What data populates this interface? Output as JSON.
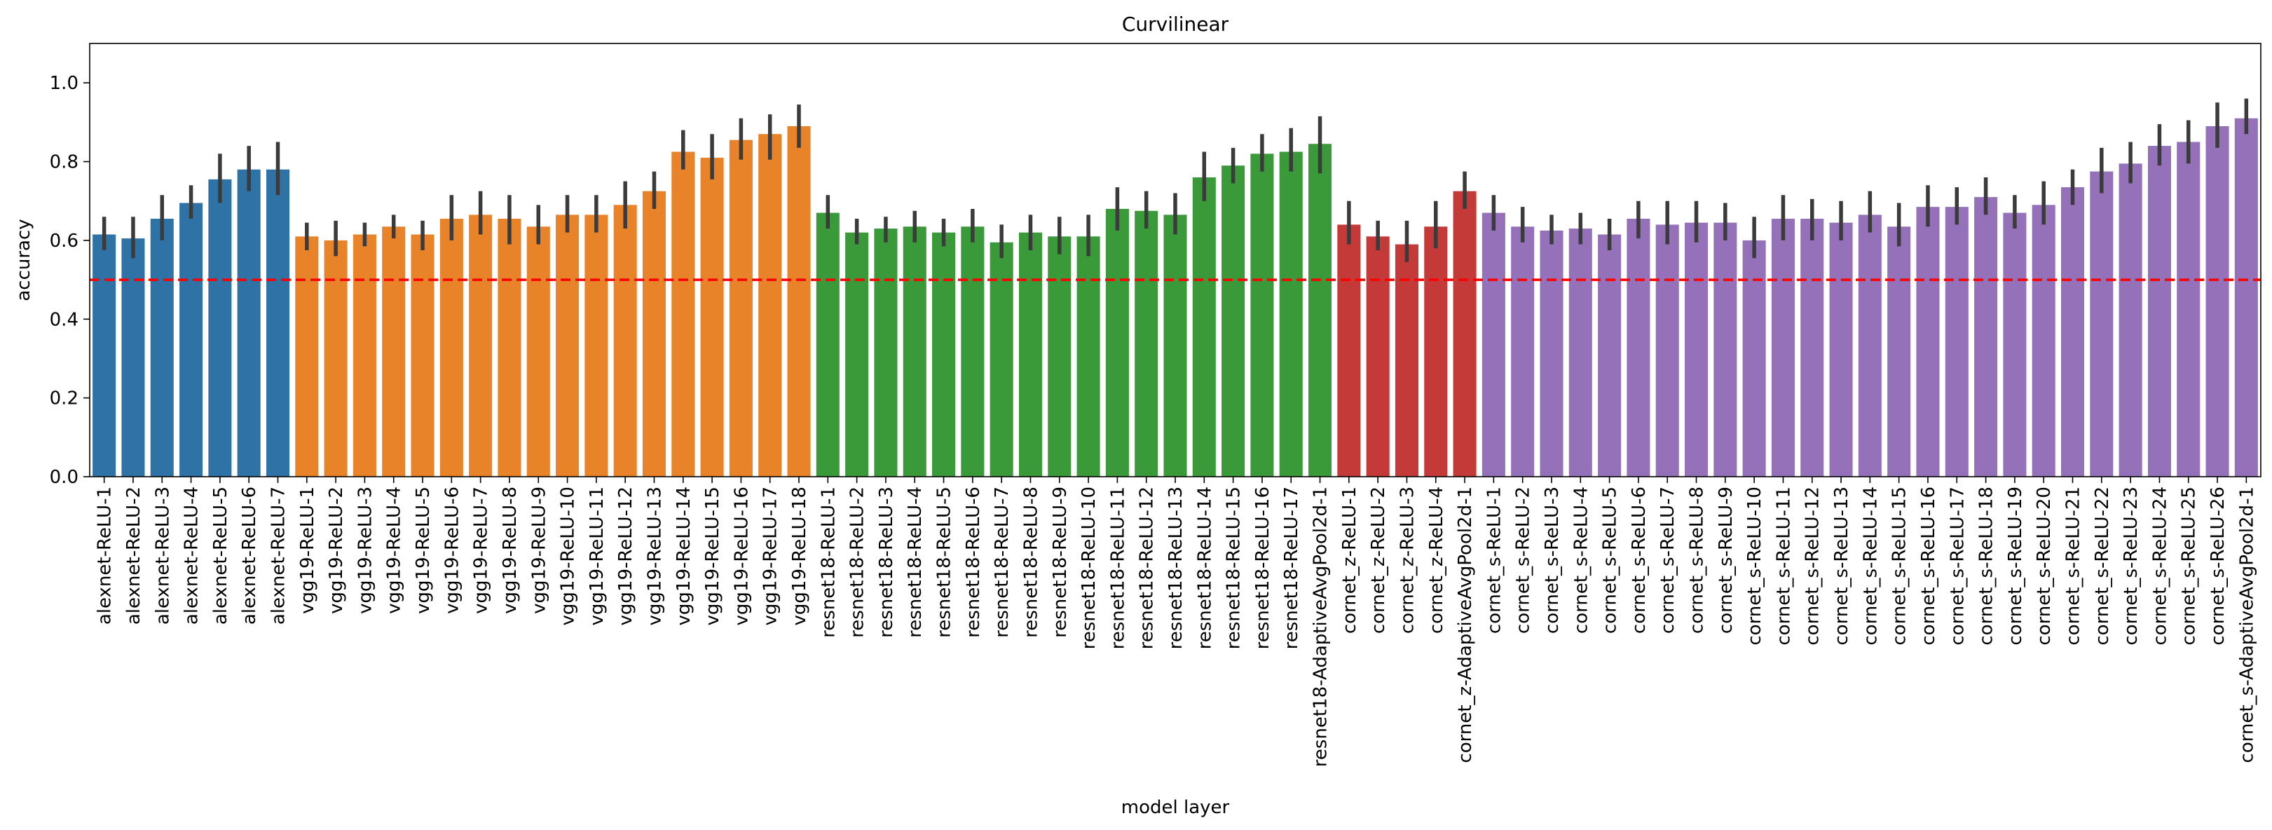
{
  "chart_data": {
    "type": "bar",
    "title": "Curvilinear",
    "xlabel": "model layer",
    "ylabel": "accuracy",
    "ylim": [
      0,
      1.1
    ],
    "yticks": [
      "0.0",
      "0.2",
      "0.4",
      "0.6",
      "0.8",
      "1.0"
    ],
    "grid": false,
    "legend": "none",
    "reference_line": {
      "y": 0.5,
      "color": "#ff0000",
      "style": "dashed"
    },
    "errorbar_color": "#3b3b3b",
    "groups": [
      {
        "model": "alexnet",
        "color": "#2f73a6"
      },
      {
        "model": "vgg19",
        "color": "#e8832a"
      },
      {
        "model": "resnet18",
        "color": "#3a9a3a"
      },
      {
        "model": "cornet_z",
        "color": "#c33a39"
      },
      {
        "model": "cornet_s",
        "color": "#9471b8"
      }
    ],
    "categories": [
      "alexnet-ReLU-1",
      "alexnet-ReLU-2",
      "alexnet-ReLU-3",
      "alexnet-ReLU-4",
      "alexnet-ReLU-5",
      "alexnet-ReLU-6",
      "alexnet-ReLU-7",
      "vgg19-ReLU-1",
      "vgg19-ReLU-2",
      "vgg19-ReLU-3",
      "vgg19-ReLU-4",
      "vgg19-ReLU-5",
      "vgg19-ReLU-6",
      "vgg19-ReLU-7",
      "vgg19-ReLU-8",
      "vgg19-ReLU-9",
      "vgg19-ReLU-10",
      "vgg19-ReLU-11",
      "vgg19-ReLU-12",
      "vgg19-ReLU-13",
      "vgg19-ReLU-14",
      "vgg19-ReLU-15",
      "vgg19-ReLU-16",
      "vgg19-ReLU-17",
      "vgg19-ReLU-18",
      "resnet18-ReLU-1",
      "resnet18-ReLU-2",
      "resnet18-ReLU-3",
      "resnet18-ReLU-4",
      "resnet18-ReLU-5",
      "resnet18-ReLU-6",
      "resnet18-ReLU-7",
      "resnet18-ReLU-8",
      "resnet18-ReLU-9",
      "resnet18-ReLU-10",
      "resnet18-ReLU-11",
      "resnet18-ReLU-12",
      "resnet18-ReLU-13",
      "resnet18-ReLU-14",
      "resnet18-ReLU-15",
      "resnet18-ReLU-16",
      "resnet18-ReLU-17",
      "resnet18-AdaptiveAvgPool2d-1",
      "cornet_z-ReLU-1",
      "cornet_z-ReLU-2",
      "cornet_z-ReLU-3",
      "cornet_z-ReLU-4",
      "cornet_z-AdaptiveAvgPool2d-1",
      "cornet_s-ReLU-1",
      "cornet_s-ReLU-2",
      "cornet_s-ReLU-3",
      "cornet_s-ReLU-4",
      "cornet_s-ReLU-5",
      "cornet_s-ReLU-6",
      "cornet_s-ReLU-7",
      "cornet_s-ReLU-8",
      "cornet_s-ReLU-9",
      "cornet_s-ReLU-10",
      "cornet_s-ReLU-11",
      "cornet_s-ReLU-12",
      "cornet_s-ReLU-13",
      "cornet_s-ReLU-14",
      "cornet_s-ReLU-15",
      "cornet_s-ReLU-16",
      "cornet_s-ReLU-17",
      "cornet_s-ReLU-18",
      "cornet_s-ReLU-19",
      "cornet_s-ReLU-20",
      "cornet_s-ReLU-21",
      "cornet_s-ReLU-22",
      "cornet_s-ReLU-23",
      "cornet_s-ReLU-24",
      "cornet_s-ReLU-25",
      "cornet_s-ReLU-26",
      "cornet_s-AdaptiveAvgPool2d-1"
    ],
    "group_index": [
      0,
      0,
      0,
      0,
      0,
      0,
      0,
      1,
      1,
      1,
      1,
      1,
      1,
      1,
      1,
      1,
      1,
      1,
      1,
      1,
      1,
      1,
      1,
      1,
      1,
      2,
      2,
      2,
      2,
      2,
      2,
      2,
      2,
      2,
      2,
      2,
      2,
      2,
      2,
      2,
      2,
      2,
      2,
      3,
      3,
      3,
      3,
      3,
      4,
      4,
      4,
      4,
      4,
      4,
      4,
      4,
      4,
      4,
      4,
      4,
      4,
      4,
      4,
      4,
      4,
      4,
      4,
      4,
      4,
      4,
      4,
      4,
      4,
      4,
      4
    ],
    "values": [
      0.615,
      0.605,
      0.655,
      0.695,
      0.755,
      0.78,
      0.78,
      0.61,
      0.6,
      0.615,
      0.635,
      0.615,
      0.655,
      0.665,
      0.655,
      0.635,
      0.665,
      0.665,
      0.69,
      0.725,
      0.825,
      0.81,
      0.855,
      0.87,
      0.89,
      0.67,
      0.62,
      0.63,
      0.635,
      0.62,
      0.635,
      0.595,
      0.62,
      0.61,
      0.61,
      0.68,
      0.675,
      0.665,
      0.76,
      0.79,
      0.82,
      0.825,
      0.845,
      0.64,
      0.61,
      0.59,
      0.635,
      0.725,
      0.67,
      0.635,
      0.625,
      0.63,
      0.615,
      0.655,
      0.64,
      0.645,
      0.645,
      0.6,
      0.655,
      0.655,
      0.645,
      0.665,
      0.635,
      0.685,
      0.685,
      0.71,
      0.67,
      0.69,
      0.735,
      0.775,
      0.795,
      0.84,
      0.85,
      0.89,
      0.91
    ],
    "err_low": [
      0.575,
      0.555,
      0.6,
      0.655,
      0.695,
      0.725,
      0.715,
      0.575,
      0.56,
      0.585,
      0.605,
      0.575,
      0.6,
      0.615,
      0.59,
      0.59,
      0.62,
      0.62,
      0.63,
      0.68,
      0.78,
      0.755,
      0.805,
      0.805,
      0.835,
      0.63,
      0.59,
      0.595,
      0.595,
      0.585,
      0.595,
      0.555,
      0.575,
      0.565,
      0.56,
      0.625,
      0.63,
      0.615,
      0.7,
      0.745,
      0.775,
      0.775,
      0.77,
      0.59,
      0.575,
      0.545,
      0.58,
      0.68,
      0.625,
      0.595,
      0.59,
      0.59,
      0.575,
      0.605,
      0.59,
      0.595,
      0.6,
      0.555,
      0.6,
      0.6,
      0.6,
      0.62,
      0.585,
      0.635,
      0.64,
      0.665,
      0.63,
      0.64,
      0.69,
      0.72,
      0.745,
      0.79,
      0.795,
      0.835,
      0.87
    ],
    "err_high": [
      0.66,
      0.66,
      0.715,
      0.74,
      0.82,
      0.84,
      0.85,
      0.645,
      0.65,
      0.645,
      0.665,
      0.65,
      0.715,
      0.725,
      0.715,
      0.69,
      0.715,
      0.715,
      0.75,
      0.775,
      0.88,
      0.87,
      0.91,
      0.92,
      0.945,
      0.715,
      0.655,
      0.66,
      0.675,
      0.655,
      0.68,
      0.64,
      0.665,
      0.66,
      0.665,
      0.735,
      0.725,
      0.72,
      0.825,
      0.835,
      0.87,
      0.885,
      0.915,
      0.7,
      0.65,
      0.65,
      0.7,
      0.775,
      0.715,
      0.685,
      0.665,
      0.67,
      0.655,
      0.7,
      0.7,
      0.7,
      0.695,
      0.66,
      0.715,
      0.705,
      0.7,
      0.725,
      0.695,
      0.74,
      0.735,
      0.76,
      0.715,
      0.75,
      0.78,
      0.835,
      0.85,
      0.895,
      0.905,
      0.95,
      0.96
    ]
  }
}
